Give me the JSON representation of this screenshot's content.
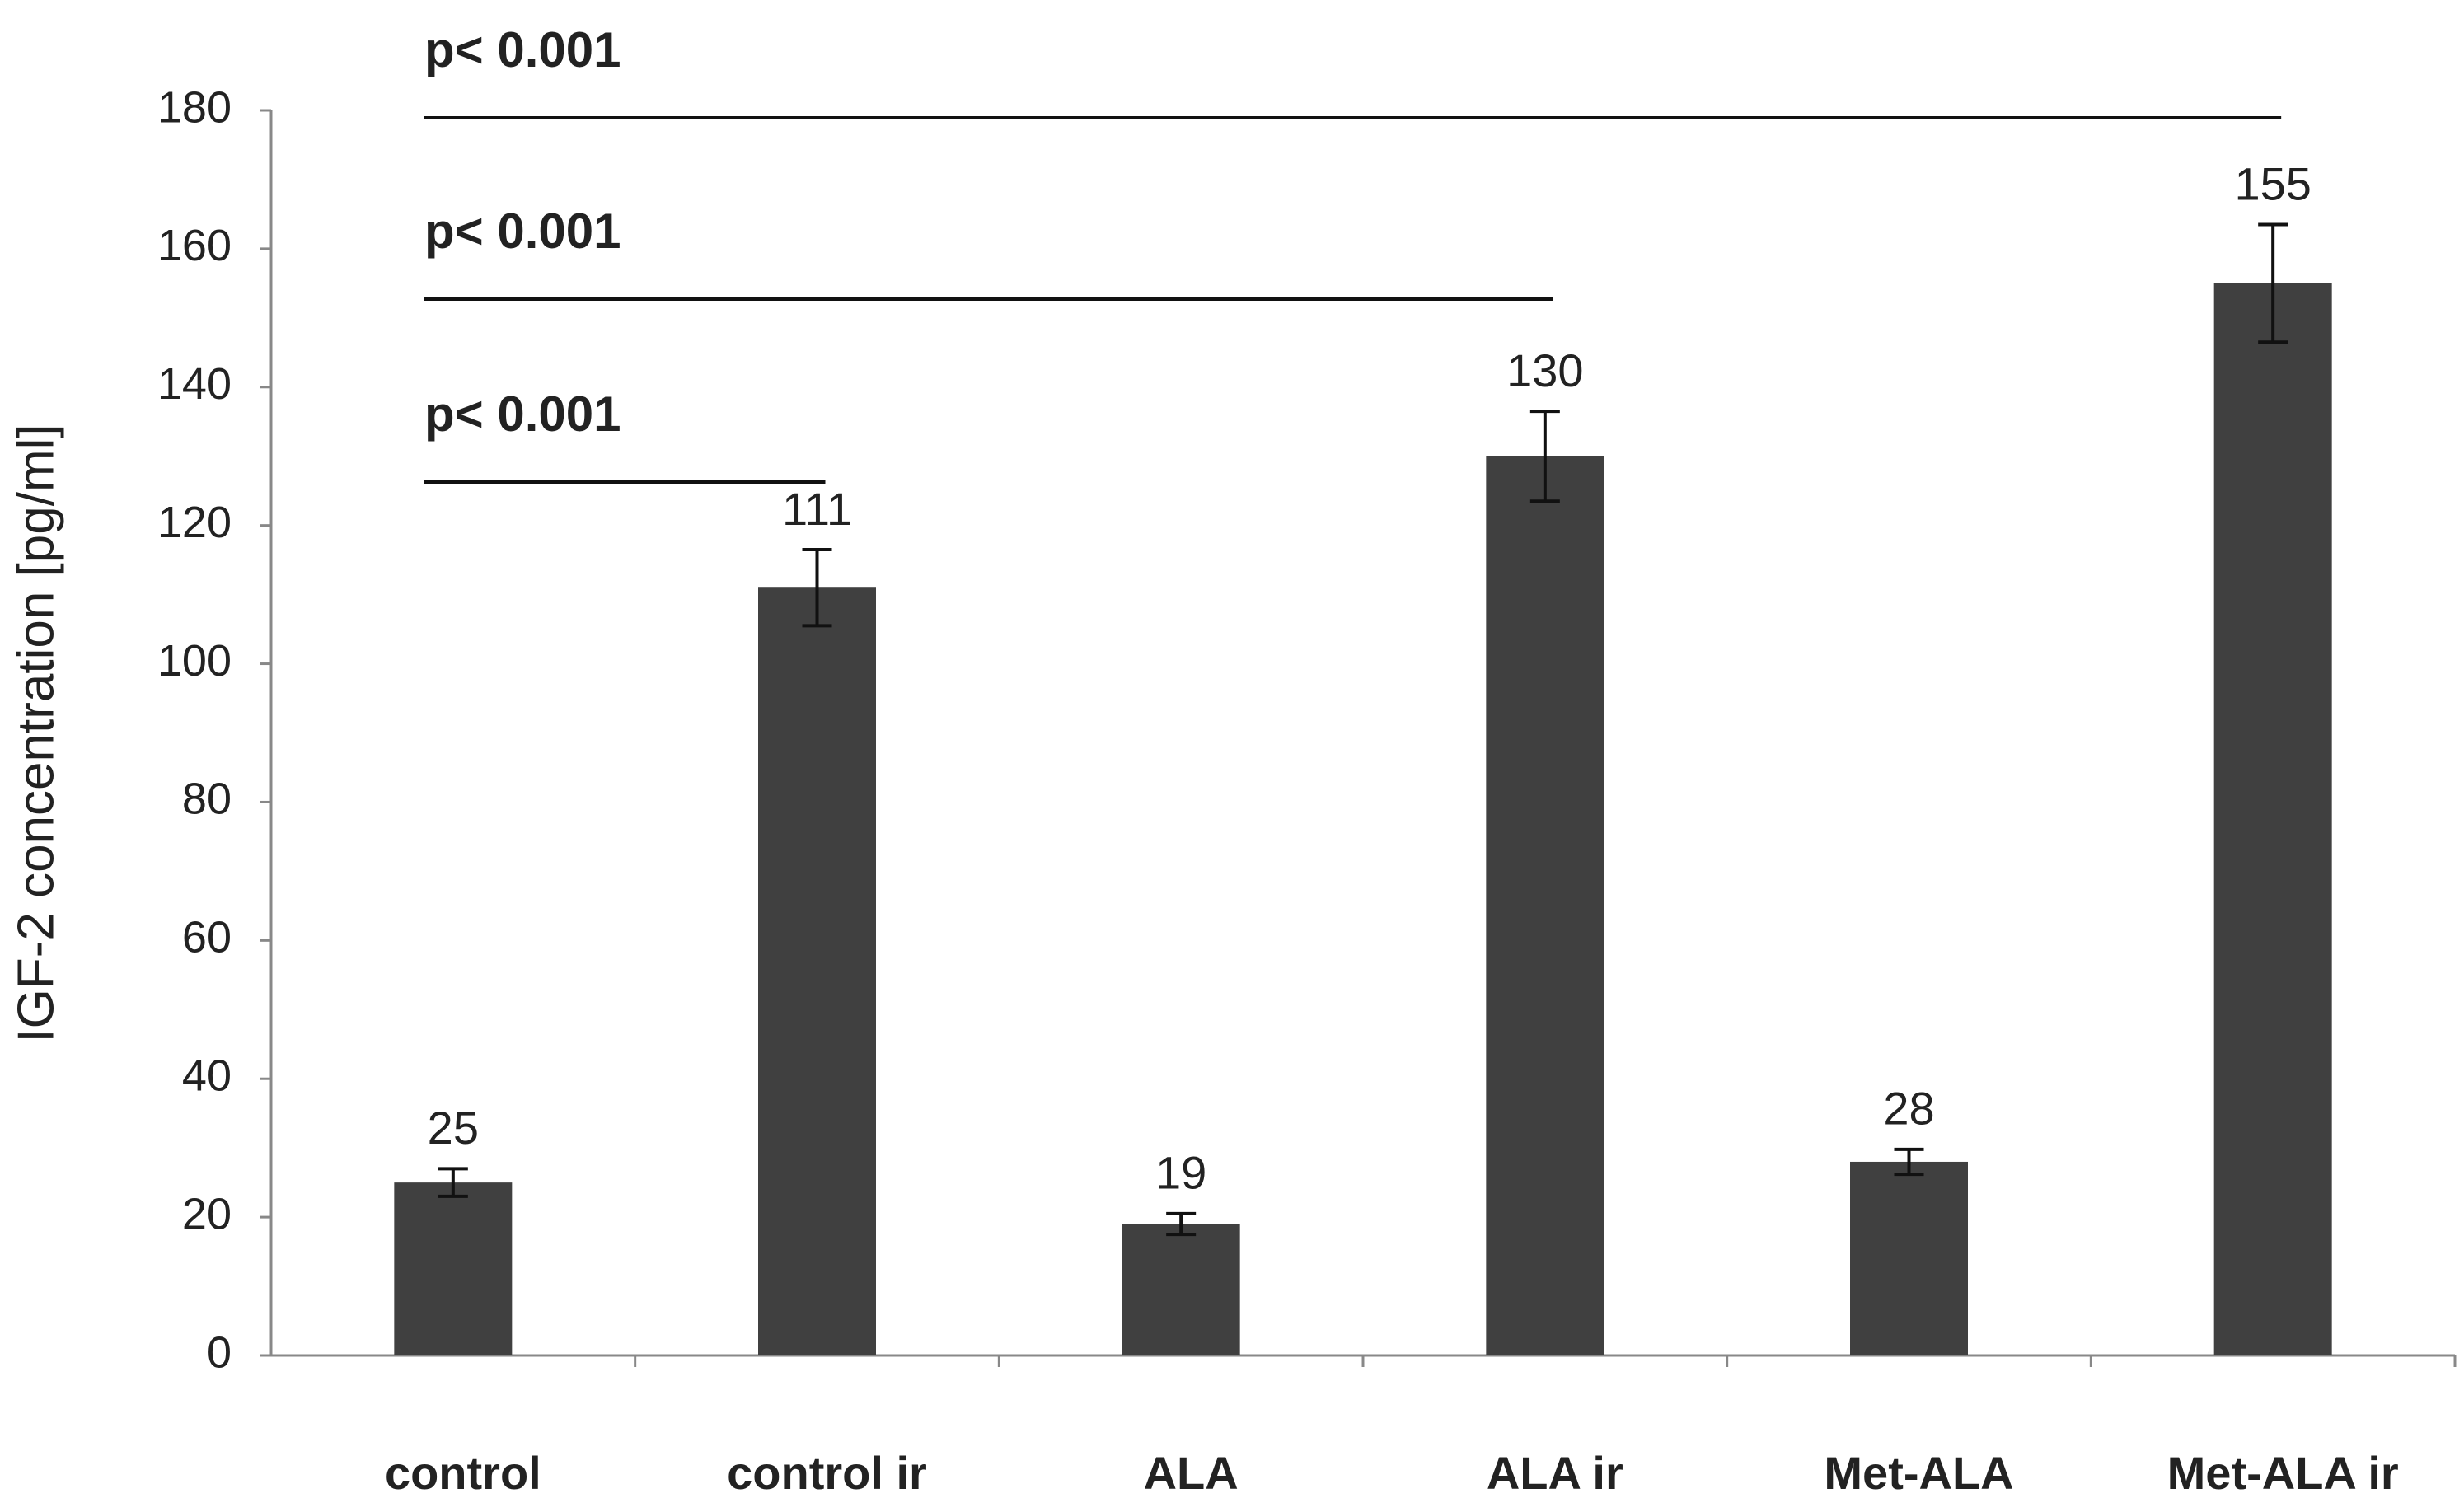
{
  "chart_data": {
    "type": "bar",
    "y_label": "IGF-2 concentration [pg/ml]",
    "categories": [
      "control",
      "control ir",
      "ALA",
      "ALA ir",
      "Met-ALA",
      "Met-ALA ir"
    ],
    "values": [
      25,
      111,
      19,
      130,
      28,
      155
    ],
    "errors": [
      2,
      5.5,
      1.5,
      6.5,
      1.8,
      8.5
    ],
    "color": "#404040",
    "ylim": [
      0,
      180
    ],
    "yticks": [
      0,
      20,
      40,
      60,
      80,
      100,
      120,
      140,
      160,
      180
    ],
    "grid": false,
    "annotations": [
      "p< 0.001",
      "p< 0.001",
      "p< 0.001"
    ]
  }
}
